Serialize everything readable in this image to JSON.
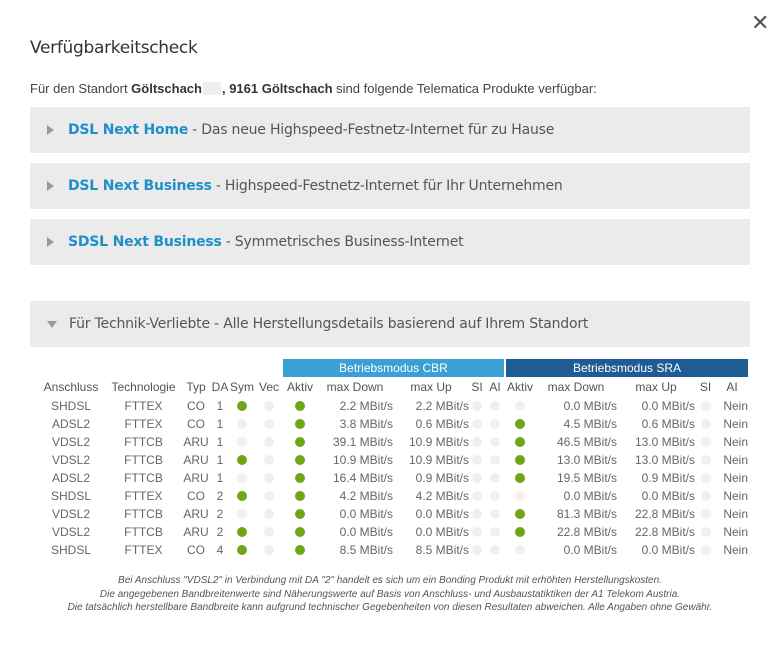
{
  "dialog": {
    "close_glyph": "✕",
    "title": "Verfügbarkeitscheck",
    "intro": {
      "prefix": "Für den Standort ",
      "place": "Göltschach",
      "sep": ", ",
      "postal": "9161 Göltschach",
      "suffix": " sind folgende Telematica Produkte verfügbar:"
    }
  },
  "products": [
    {
      "name": "DSL Next Home",
      "desc": "- Das neue Highspeed-Festnetz-Internet für zu Hause"
    },
    {
      "name": "DSL Next Business",
      "desc": "- Highspeed-Festnetz-Internet für Ihr Unternehmen"
    },
    {
      "name": "SDSL Next Business",
      "desc": "- Symmetrisches Business-Internet"
    }
  ],
  "tech": {
    "title": "Für Technik-Verliebte - Alle Herstellungsdetails basierend auf Ihrem Standort",
    "group_cbr": "Betriebsmodus CBR",
    "group_sra": "Betriebsmodus SRA",
    "columns": [
      "Anschluss",
      "Technologie",
      "Typ",
      "DA",
      "Sym",
      "Vec",
      "Aktiv",
      "max Down",
      "max Up",
      "SI",
      "AI",
      "Aktiv",
      "max Down",
      "max Up",
      "SI",
      "AI"
    ],
    "rows": [
      {
        "anschluss": "SHDSL",
        "technologie": "FTTEX",
        "typ": "CO",
        "da": "1",
        "sym": true,
        "vec": false,
        "cbr_aktiv": true,
        "cbr_down": "2.2 MBit/s",
        "cbr_up": "2.2 MBit/s",
        "cbr_si": false,
        "cbr_ai": false,
        "sra_aktiv": false,
        "sra_down": "0.0 MBit/s",
        "sra_up": "0.0 MBit/s",
        "sra_si": false,
        "sra_ai": "Nein"
      },
      {
        "anschluss": "ADSL2",
        "technologie": "FTTEX",
        "typ": "CO",
        "da": "1",
        "sym": false,
        "vec": false,
        "cbr_aktiv": true,
        "cbr_down": "3.8 MBit/s",
        "cbr_up": "0.6 MBit/s",
        "cbr_si": false,
        "cbr_ai": false,
        "sra_aktiv": true,
        "sra_down": "4.5 MBit/s",
        "sra_up": "0.6 MBit/s",
        "sra_si": false,
        "sra_ai": "Nein"
      },
      {
        "anschluss": "VDSL2",
        "technologie": "FTTCB",
        "typ": "ARU",
        "da": "1",
        "sym": false,
        "vec": false,
        "cbr_aktiv": true,
        "cbr_down": "39.1 MBit/s",
        "cbr_up": "10.9 MBit/s",
        "cbr_si": false,
        "cbr_ai": false,
        "sra_aktiv": true,
        "sra_down": "46.5 MBit/s",
        "sra_up": "13.0 MBit/s",
        "sra_si": false,
        "sra_ai": "Nein"
      },
      {
        "anschluss": "VDSL2",
        "technologie": "FTTCB",
        "typ": "ARU",
        "da": "1",
        "sym": true,
        "vec": false,
        "cbr_aktiv": true,
        "cbr_down": "10.9 MBit/s",
        "cbr_up": "10.9 MBit/s",
        "cbr_si": false,
        "cbr_ai": false,
        "sra_aktiv": true,
        "sra_down": "13.0 MBit/s",
        "sra_up": "13.0 MBit/s",
        "sra_si": false,
        "sra_ai": "Nein"
      },
      {
        "anschluss": "ADSL2",
        "technologie": "FTTCB",
        "typ": "ARU",
        "da": "1",
        "sym": false,
        "vec": false,
        "cbr_aktiv": true,
        "cbr_down": "16.4 MBit/s",
        "cbr_up": "0.9 MBit/s",
        "cbr_si": false,
        "cbr_ai": false,
        "sra_aktiv": true,
        "sra_down": "19.5 MBit/s",
        "sra_up": "0.9 MBit/s",
        "sra_si": false,
        "sra_ai": "Nein"
      },
      {
        "anschluss": "SHDSL",
        "technologie": "FTTEX",
        "typ": "CO",
        "da": "2",
        "sym": true,
        "vec": false,
        "cbr_aktiv": true,
        "cbr_down": "4.2 MBit/s",
        "cbr_up": "4.2 MBit/s",
        "cbr_si": false,
        "cbr_ai": false,
        "sra_aktiv": false,
        "sra_down": "0.0 MBit/s",
        "sra_up": "0.0 MBit/s",
        "sra_si": false,
        "sra_ai": "Nein"
      },
      {
        "anschluss": "VDSL2",
        "technologie": "FTTCB",
        "typ": "ARU",
        "da": "2",
        "sym": false,
        "vec": false,
        "cbr_aktiv": true,
        "cbr_down": "0.0 MBit/s",
        "cbr_up": "0.0 MBit/s",
        "cbr_si": false,
        "cbr_ai": false,
        "sra_aktiv": true,
        "sra_down": "81.3 MBit/s",
        "sra_up": "22.8 MBit/s",
        "sra_si": false,
        "sra_ai": "Nein"
      },
      {
        "anschluss": "VDSL2",
        "technologie": "FTTCB",
        "typ": "ARU",
        "da": "2",
        "sym": true,
        "vec": false,
        "cbr_aktiv": true,
        "cbr_down": "0.0 MBit/s",
        "cbr_up": "0.0 MBit/s",
        "cbr_si": false,
        "cbr_ai": false,
        "sra_aktiv": true,
        "sra_down": "22.8 MBit/s",
        "sra_up": "22.8 MBit/s",
        "sra_si": false,
        "sra_ai": "Nein"
      },
      {
        "anschluss": "SHDSL",
        "technologie": "FTTEX",
        "typ": "CO",
        "da": "4",
        "sym": true,
        "vec": false,
        "cbr_aktiv": true,
        "cbr_down": "8.5 MBit/s",
        "cbr_up": "8.5 MBit/s",
        "cbr_si": false,
        "cbr_ai": false,
        "sra_aktiv": false,
        "sra_down": "0.0 MBit/s",
        "sra_up": "0.0 MBit/s",
        "sra_si": false,
        "sra_ai": "Nein"
      }
    ]
  },
  "footnotes": [
    "Bei Anschluss \"VDSL2\" in Verbindung mit DA \"2\" handelt es sich um ein Bonding Produkt mit erhöhten Herstellungskosten.",
    "Die angegebenen Bandbreitenwerte sind Näherungswerte auf Basis von Anschluss- und Ausbaustatiktiken der A1 Telekom Austria.",
    "Die tatsächlich herstellbare Bandbreite kann aufgrund technischer Gegebenheiten von diesen Resultaten abweichen. Alle Angaben ohne Gewähr."
  ],
  "colors": {
    "accent": "#1f8fc8",
    "cbr": "#3ba0d3",
    "sra": "#1f5b94",
    "active_dot": "#6fa615",
    "inactive_dot": "#f0f0f0"
  }
}
